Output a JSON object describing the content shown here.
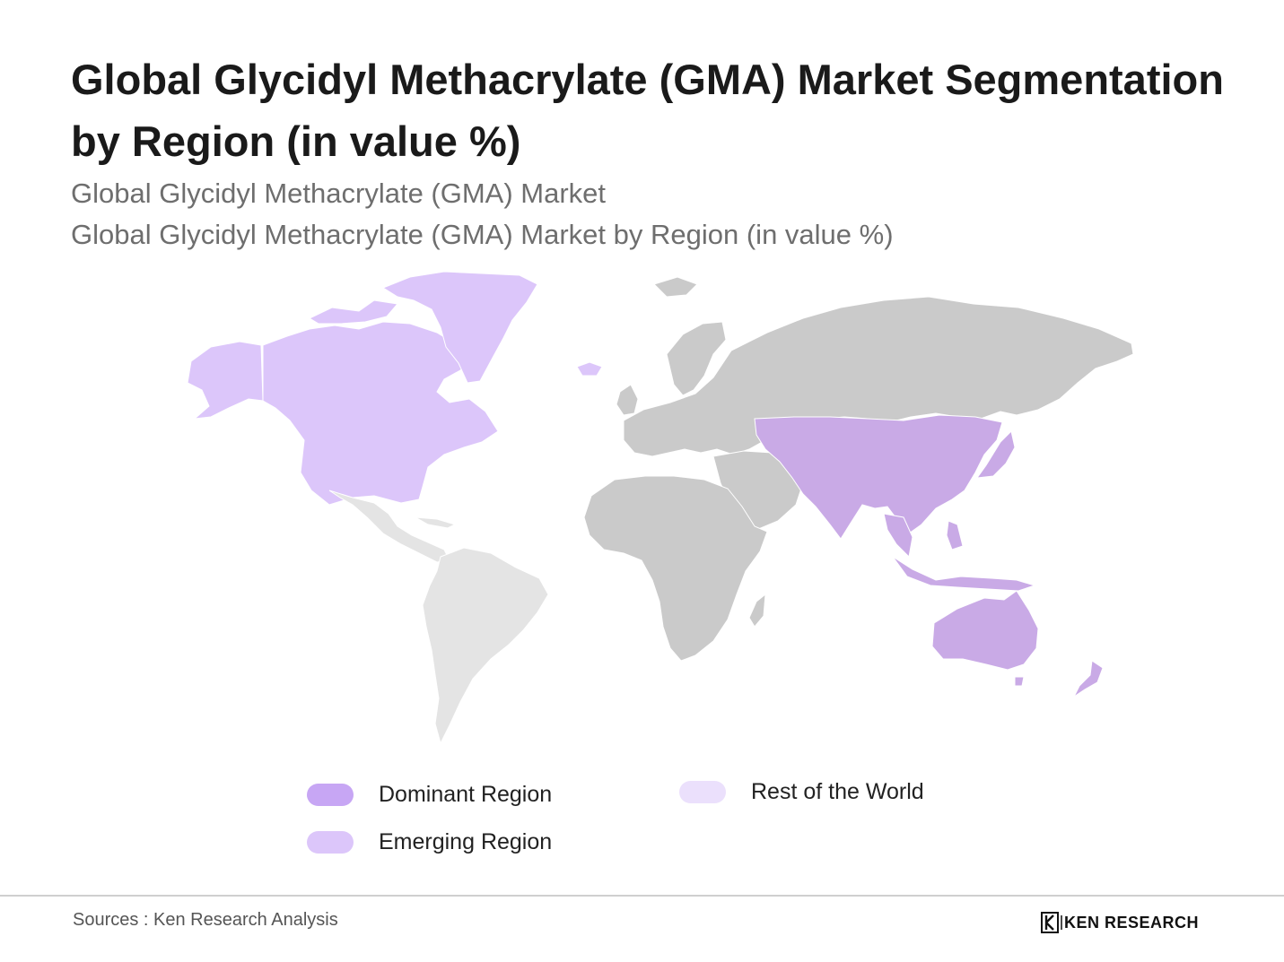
{
  "title": "Global Glycidyl Methacrylate (GMA) Market Segmentation by Region (in value %)",
  "subtitle_1": "Global Glycidyl Methacrylate (GMA) Market",
  "subtitle_2": "Global Glycidyl Methacrylate (GMA) Market by Region (in value %)",
  "colors": {
    "dominant": "#c7a6f4",
    "emerging": "#dcc6fa",
    "rest_of_world": "#ebe0fc",
    "asia_pacific_fill": "#c9aae6",
    "north_america_fill": "#dcc6fa",
    "latin_america_fill": "#e4e4e4",
    "other_regions_fill": "#cacaca",
    "border": "#ffffff"
  },
  "map": {
    "regions": [
      {
        "id": "north-america",
        "legend_class": "emerging"
      },
      {
        "id": "asia-pacific",
        "legend_class": "dominant"
      },
      {
        "id": "latin-america",
        "legend_class": "rest_of_world"
      }
    ]
  },
  "legend": {
    "dominant": "Dominant Region",
    "emerging": "Emerging Region",
    "rest": "Rest of the World"
  },
  "footer": {
    "source": "Sources : Ken Research Analysis",
    "brand": "KEN RESEARCH",
    "brand_mark": "K"
  }
}
